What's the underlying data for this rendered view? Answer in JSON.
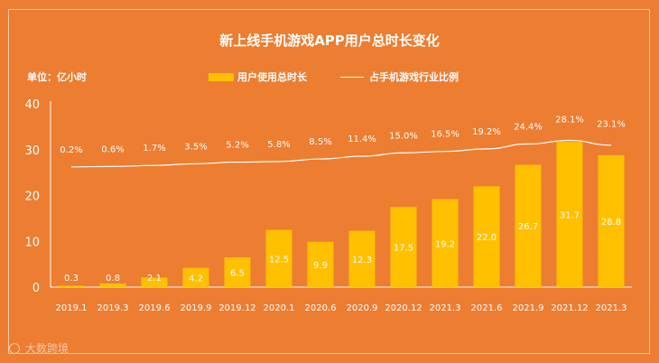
{
  "colors": {
    "background": "#ED7D31",
    "bar": "#FFC000",
    "line": "#FFFFFF",
    "axis": "#FFFFFF"
  },
  "watermark": "大数跨境",
  "chart_data": {
    "type": "bar",
    "title": "新上线手机游戏APP用户总时长变化",
    "unit_label": "单位：亿小时",
    "ylim": [
      0,
      40
    ],
    "yticks": [
      0,
      10,
      20,
      30,
      40
    ],
    "categories": [
      "2019.1",
      "2019.3",
      "2019.6",
      "2019.9",
      "2019.12",
      "2020.1",
      "2020.6",
      "2020.9",
      "2020.12",
      "2021.3",
      "2021.6",
      "2021.9",
      "2021.12",
      "2021.3"
    ],
    "series": [
      {
        "name": "用户使用总时长",
        "type": "bar",
        "values": [
          0.3,
          0.8,
          2.1,
          4.2,
          6.5,
          12.5,
          9.9,
          12.3,
          17.5,
          19.2,
          22.0,
          26.7,
          31.7,
          28.8
        ],
        "labels": [
          "0.3",
          "0.8",
          "2.1",
          "4.2",
          "6.5",
          "12.5",
          "9.9",
          "12.3",
          "17.5",
          "19.2",
          "22.0",
          "26.7",
          "31.7",
          "28.8"
        ]
      },
      {
        "name": "占手机游戏行业比例",
        "type": "line",
        "values": [
          0.2,
          0.6,
          1.7,
          3.5,
          5.2,
          5.8,
          8.5,
          11.4,
          15.0,
          16.5,
          19.2,
          24.4,
          28.1,
          23.1
        ],
        "labels": [
          "0.2%",
          "0.6%",
          "1.7%",
          "3.5%",
          "5.2%",
          "5.8%",
          "8.5%",
          "11.4%",
          "15.0%",
          "16.5%",
          "19.2%",
          "24.4%",
          "28.1%",
          "23.1%"
        ]
      }
    ]
  }
}
